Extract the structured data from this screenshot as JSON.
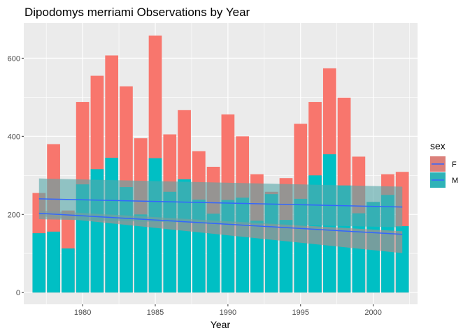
{
  "chart_data": {
    "type": "bar",
    "title": "Dipodomys merriami Observations by Year",
    "xlabel": "Year",
    "ylabel": "",
    "x_ticks": [
      1980,
      1985,
      1990,
      1995,
      2000
    ],
    "y_ticks": [
      0,
      200,
      400,
      600
    ],
    "xlim": [
      1975.95,
      2003.05
    ],
    "ylim": [
      -30,
      690
    ],
    "grid": true,
    "stacked": false,
    "years": [
      1977,
      1978,
      1979,
      1980,
      1981,
      1982,
      1983,
      1984,
      1985,
      1986,
      1987,
      1988,
      1989,
      1990,
      1991,
      1992,
      1993,
      1994,
      1995,
      1996,
      1997,
      1998,
      1999,
      2000,
      2001,
      2002
    ],
    "legend": {
      "title": "sex",
      "position": "right"
    },
    "series": [
      {
        "name": "F",
        "color": "#F8766D",
        "values": [
          255,
          380,
          210,
          488,
          555,
          607,
          528,
          395,
          658,
          405,
          467,
          362,
          322,
          456,
          400,
          303,
          258,
          293,
          432,
          488,
          574,
          499,
          348,
          232,
          303,
          309
        ],
        "trend": {
          "start": [
            1977,
            203
          ],
          "end": [
            2002,
            149
          ],
          "band_upper": [
            210,
            157
          ],
          "band_lower": [
            196,
            101
          ]
        }
      },
      {
        "name": "M",
        "color": "#00BFC4",
        "values": [
          152,
          156,
          113,
          277,
          316,
          345,
          270,
          200,
          344,
          258,
          290,
          238,
          202,
          237,
          243,
          184,
          252,
          186,
          240,
          300,
          354,
          274,
          203,
          232,
          250,
          170
        ],
        "trend": {
          "start": [
            1977,
            240
          ],
          "end": [
            2002,
            219
          ],
          "band_upper": [
            292,
            271
          ],
          "band_lower": [
            188,
            167
          ]
        }
      }
    ],
    "trend_line_color": "#3366FF"
  }
}
